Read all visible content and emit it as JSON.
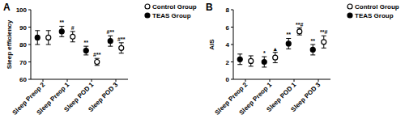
{
  "chart_data": [
    {
      "type": "scatter",
      "title": "A",
      "y_label": "Sleep efficiency",
      "categories": [
        "Sleep Preop 2",
        "Sleep Preop 1",
        "Sleep POD 1",
        "Sleep POD 3"
      ],
      "ylim": [
        60,
        100
      ],
      "yticks": [
        60,
        70,
        80,
        90,
        100
      ],
      "legend": "upper right",
      "series": [
        {
          "name": "Control Group",
          "color": "#000000",
          "marker": "circle-open",
          "values": [
            84,
            84.5,
            70,
            78
          ],
          "errors": [
            4,
            3,
            2,
            3
          ],
          "annotations": [
            null,
            "#",
            "#**",
            "#**"
          ]
        },
        {
          "name": "TEAS  Group",
          "color": "#000000",
          "marker": "circle",
          "values": [
            84,
            87.5,
            76.5,
            82
          ],
          "errors": [
            4,
            3,
            2.5,
            3
          ],
          "annotations": [
            null,
            "**",
            "**",
            "#**"
          ]
        }
      ]
    },
    {
      "type": "scatter",
      "title": "B",
      "y_label": "AIS",
      "categories": [
        "Sleep Preop 2",
        "Sleep Preop 1",
        "Sleep POD 1",
        "Sleep POD 3"
      ],
      "ylim": [
        0,
        8
      ],
      "yticks": [
        0,
        2,
        4,
        6,
        8
      ],
      "legend": "upper right",
      "series": [
        {
          "name": "Control Group",
          "color": "#000000",
          "marker": "circle-open",
          "values": [
            2.1,
            2.5,
            5.5,
            4.3
          ],
          "errors": [
            0.6,
            0.6,
            0.4,
            0.7
          ],
          "annotations": [
            null,
            "▲",
            "**#",
            "**#"
          ]
        },
        {
          "name": "TEAS  Group",
          "color": "#000000",
          "marker": "circle",
          "values": [
            2.3,
            2.0,
            4.1,
            3.4
          ],
          "errors": [
            0.6,
            0.6,
            0.6,
            0.6
          ],
          "annotations": [
            null,
            "*",
            "**",
            "**"
          ]
        }
      ]
    }
  ]
}
